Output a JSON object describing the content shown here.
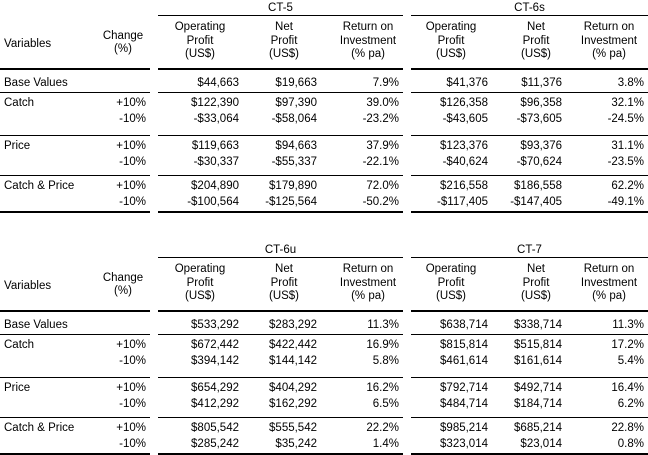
{
  "tables": [
    {
      "top": 0,
      "variables_label": "Variables",
      "change_label": [
        "Change",
        "(%)"
      ],
      "groups": [
        {
          "name": "CT-5",
          "col_headers": [
            [
              "Operating",
              "Profit",
              "(US$)"
            ],
            [
              "Net",
              "Profit",
              "(US$)"
            ],
            [
              "Return on",
              "Investment",
              "(% pa)"
            ]
          ]
        },
        {
          "name": "CT-6s",
          "col_headers": [
            [
              "Operating",
              "Profit",
              "(US$)"
            ],
            [
              "Net",
              "Profit",
              "(US$)"
            ],
            [
              "Return on",
              "Investment",
              "(% pa)"
            ]
          ]
        }
      ],
      "sections": [
        {
          "label": "Base Values",
          "rows": [
            {
              "change": "",
              "values": [
                "$44,663",
                "$19,663",
                "7.9%",
                "$41,376",
                "$11,376",
                "3.8%"
              ]
            }
          ]
        },
        {
          "label": "Catch",
          "rows": [
            {
              "change": "+10%",
              "values": [
                "$122,390",
                "$97,390",
                "39.0%",
                "$126,358",
                "$96,358",
                "32.1%"
              ]
            },
            {
              "change": "-10%",
              "values": [
                "-$33,064",
                "-$58,064",
                "-23.2%",
                "-$43,605",
                "-$73,605",
                "-24.5%"
              ]
            }
          ]
        },
        {
          "label": "Price",
          "rows": [
            {
              "change": "+10%",
              "values": [
                "$119,663",
                "$94,663",
                "37.9%",
                "$123,376",
                "$93,376",
                "31.1%"
              ]
            },
            {
              "change": "-10%",
              "values": [
                "-$30,337",
                "-$55,337",
                "-22.1%",
                "-$40,624",
                "-$70,624",
                "-23.5%"
              ]
            }
          ]
        },
        {
          "label": "Catch & Price",
          "rows": [
            {
              "change": "+10%",
              "values": [
                "$204,890",
                "$179,890",
                "72.0%",
                "$216,558",
                "$186,558",
                "62.2%"
              ]
            },
            {
              "change": "-10%",
              "values": [
                "-$100,564",
                "-$125,564",
                "-50.2%",
                "-$117,405",
                "-$147,405",
                "-49.1%"
              ]
            }
          ]
        }
      ]
    },
    {
      "top": 242,
      "variables_label": "Variables",
      "change_label": [
        "Change",
        "(%)"
      ],
      "groups": [
        {
          "name": "CT-6u",
          "col_headers": [
            [
              "Operating",
              "Profit",
              "(US$)"
            ],
            [
              "Net",
              "Profit",
              "(US$)"
            ],
            [
              "Return on",
              "Investment",
              "(% pa)"
            ]
          ]
        },
        {
          "name": "CT-7",
          "col_headers": [
            [
              "Operating",
              "Profit",
              "(US$)"
            ],
            [
              "Net",
              "Profit",
              "(US$)"
            ],
            [
              "Return on",
              "Investment",
              "(% pa)"
            ]
          ]
        }
      ],
      "sections": [
        {
          "label": "Base Values",
          "rows": [
            {
              "change": "",
              "values": [
                "$533,292",
                "$283,292",
                "11.3%",
                "$638,714",
                "$338,714",
                "11.3%"
              ]
            }
          ]
        },
        {
          "label": "Catch",
          "rows": [
            {
              "change": "+10%",
              "values": [
                "$672,442",
                "$422,442",
                "16.9%",
                "$815,814",
                "$515,814",
                "17.2%"
              ]
            },
            {
              "change": "-10%",
              "values": [
                "$394,142",
                "$144,142",
                "5.8%",
                "$461,614",
                "$161,614",
                "5.4%"
              ]
            }
          ]
        },
        {
          "label": "Price",
          "rows": [
            {
              "change": "+10%",
              "values": [
                "$654,292",
                "$404,292",
                "16.2%",
                "$792,714",
                "$492,714",
                "16.4%"
              ]
            },
            {
              "change": "-10%",
              "values": [
                "$412,292",
                "$162,292",
                "6.5%",
                "$484,714",
                "$184,714",
                "6.2%"
              ]
            }
          ]
        },
        {
          "label": "Catch & Price",
          "rows": [
            {
              "change": "+10%",
              "values": [
                "$805,542",
                "$555,542",
                "22.2%",
                "$985,214",
                "$685,214",
                "22.8%"
              ]
            },
            {
              "change": "-10%",
              "values": [
                "$285,242",
                "$35,242",
                "1.4%",
                "$323,014",
                "$23,014",
                "0.8%"
              ]
            }
          ]
        }
      ]
    }
  ]
}
